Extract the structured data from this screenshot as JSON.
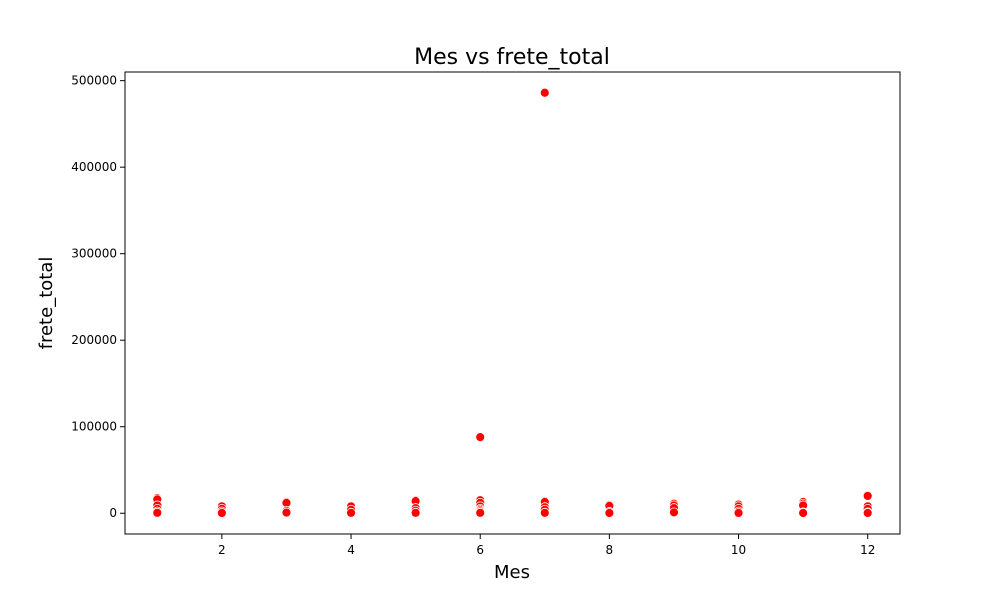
{
  "chart_data": {
    "type": "scatter",
    "title": "Mes vs frete_total",
    "xlabel": "Mes",
    "ylabel": "frete_total",
    "xlim": [
      0.5,
      12.5
    ],
    "ylim": [
      -24000,
      510000
    ],
    "x_ticks": [
      2,
      4,
      6,
      8,
      10,
      12
    ],
    "y_ticks": [
      0,
      100000,
      200000,
      300000,
      400000,
      500000
    ],
    "grid": false,
    "marker_color": "#ff0000",
    "marker_edge_color": "#ffffff",
    "points": [
      {
        "x": 1,
        "y": 17500
      },
      {
        "x": 1,
        "y": 16000
      },
      {
        "x": 1,
        "y": 9000
      },
      {
        "x": 1,
        "y": 5000
      },
      {
        "x": 1,
        "y": 2000
      },
      {
        "x": 1,
        "y": 500
      },
      {
        "x": 2,
        "y": 8000
      },
      {
        "x": 2,
        "y": 5000
      },
      {
        "x": 2,
        "y": 2000
      },
      {
        "x": 2,
        "y": 300
      },
      {
        "x": 3,
        "y": 13000
      },
      {
        "x": 3,
        "y": 12000
      },
      {
        "x": 3,
        "y": 2500
      },
      {
        "x": 3,
        "y": 800
      },
      {
        "x": 4,
        "y": 8000
      },
      {
        "x": 4,
        "y": 4000
      },
      {
        "x": 4,
        "y": 500
      },
      {
        "x": 5,
        "y": 15000
      },
      {
        "x": 5,
        "y": 14000
      },
      {
        "x": 5,
        "y": 6000
      },
      {
        "x": 5,
        "y": 3000
      },
      {
        "x": 5,
        "y": 500
      },
      {
        "x": 6,
        "y": 88000
      },
      {
        "x": 6,
        "y": 15000
      },
      {
        "x": 6,
        "y": 12000
      },
      {
        "x": 6,
        "y": 8000
      },
      {
        "x": 6,
        "y": 5000
      },
      {
        "x": 6,
        "y": 3500
      },
      {
        "x": 6,
        "y": 2000
      },
      {
        "x": 6,
        "y": 500
      },
      {
        "x": 7,
        "y": 486000
      },
      {
        "x": 7,
        "y": 14000
      },
      {
        "x": 7,
        "y": 13000
      },
      {
        "x": 7,
        "y": 7000
      },
      {
        "x": 7,
        "y": 4000
      },
      {
        "x": 7,
        "y": 500
      },
      {
        "x": 8,
        "y": 9500
      },
      {
        "x": 8,
        "y": 8500
      },
      {
        "x": 8,
        "y": 1500
      },
      {
        "x": 8,
        "y": 300
      },
      {
        "x": 9,
        "y": 11000
      },
      {
        "x": 9,
        "y": 9000
      },
      {
        "x": 9,
        "y": 6000
      },
      {
        "x": 9,
        "y": 1000
      },
      {
        "x": 10,
        "y": 10000
      },
      {
        "x": 10,
        "y": 8000
      },
      {
        "x": 10,
        "y": 5000
      },
      {
        "x": 10,
        "y": 2000
      },
      {
        "x": 10,
        "y": 300
      },
      {
        "x": 11,
        "y": 13000
      },
      {
        "x": 11,
        "y": 11000
      },
      {
        "x": 11,
        "y": 9000
      },
      {
        "x": 11,
        "y": 1000
      },
      {
        "x": 11,
        "y": 300
      },
      {
        "x": 12,
        "y": 21000
      },
      {
        "x": 12,
        "y": 20000
      },
      {
        "x": 12,
        "y": 8000
      },
      {
        "x": 12,
        "y": 5000
      },
      {
        "x": 12,
        "y": 1000
      },
      {
        "x": 12,
        "y": 300
      }
    ]
  }
}
